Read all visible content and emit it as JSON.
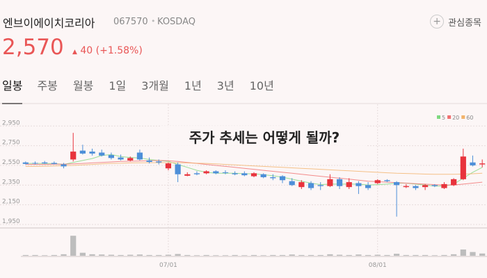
{
  "header": {
    "name": "엔브이에이치코리아",
    "code": "067570",
    "market": "KOSDAQ",
    "favorite": "관심종목",
    "price": "2,570",
    "change": "40",
    "change_pct": "(+1.58%)"
  },
  "tabs": [
    "일봉",
    "주봉",
    "월봉",
    "1일",
    "3개월",
    "1년",
    "3년",
    "10년"
  ],
  "caption": "주가 추세는 어떻게 될까?",
  "chart_data": {
    "type": "candlestick",
    "categories": [
      null,
      null,
      null,
      null,
      null,
      null,
      null,
      null,
      null,
      null,
      null,
      null,
      null,
      null,
      null,
      "07/01",
      null,
      null,
      null,
      null,
      null,
      null,
      null,
      null,
      null,
      null,
      null,
      null,
      null,
      null,
      null,
      null,
      null,
      null,
      null,
      null,
      null,
      "08/01",
      null,
      null,
      null,
      null,
      null,
      null,
      null,
      null,
      null,
      null,
      null
    ],
    "open": [
      2580,
      2575,
      2580,
      2575,
      2560,
      2610,
      2700,
      2690,
      2680,
      2655,
      2630,
      2600,
      2680,
      2600,
      2590,
      2520,
      2560,
      2445,
      2470,
      2470,
      2490,
      2480,
      2470,
      2470,
      2440,
      2460,
      2430,
      2440,
      2390,
      2330,
      2370,
      2350,
      2340,
      2410,
      2330,
      2370,
      2350,
      2370,
      2400,
      2380,
      2330,
      2340,
      2330,
      2350,
      2320,
      2350,
      2410,
      2580,
      2560
    ],
    "high": [
      2590,
      2590,
      2595,
      2590,
      2575,
      2880,
      2760,
      2720,
      2710,
      2680,
      2660,
      2640,
      2710,
      2630,
      2610,
      2580,
      2580,
      2480,
      2490,
      2500,
      2500,
      2500,
      2490,
      2490,
      2480,
      2470,
      2460,
      2450,
      2420,
      2400,
      2390,
      2380,
      2460,
      2430,
      2420,
      2390,
      2380,
      2410,
      2410,
      2390,
      2360,
      2350,
      2360,
      2360,
      2380,
      2420,
      2720,
      2650,
      2610
    ],
    "low": [
      2560,
      2560,
      2565,
      2560,
      2520,
      2590,
      2660,
      2650,
      2640,
      2610,
      2600,
      2590,
      2600,
      2570,
      2560,
      2500,
      2380,
      2440,
      2450,
      2460,
      2460,
      2460,
      2450,
      2440,
      2430,
      2420,
      2400,
      2370,
      2340,
      2310,
      2300,
      2300,
      2330,
      2310,
      2310,
      2260,
      2300,
      2360,
      2380,
      2030,
      2320,
      2300,
      2300,
      2330,
      2310,
      2340,
      2400,
      2540,
      2530
    ],
    "close": [
      2565,
      2570,
      2570,
      2565,
      2540,
      2690,
      2670,
      2670,
      2650,
      2625,
      2610,
      2625,
      2610,
      2585,
      2580,
      2570,
      2460,
      2460,
      2460,
      2490,
      2470,
      2475,
      2460,
      2450,
      2470,
      2430,
      2420,
      2400,
      2350,
      2380,
      2320,
      2340,
      2410,
      2340,
      2380,
      2340,
      2320,
      2400,
      2390,
      2350,
      2340,
      2320,
      2350,
      2340,
      2360,
      2410,
      2640,
      2550,
      2570
    ],
    "volume": [
      3,
      3,
      2,
      3,
      6,
      80,
      12,
      6,
      5,
      4,
      3,
      4,
      5,
      3,
      3,
      4,
      7,
      3,
      2,
      3,
      2,
      2,
      3,
      2,
      3,
      2,
      3,
      3,
      5,
      3,
      3,
      3,
      6,
      4,
      3,
      5,
      3,
      4,
      3,
      8,
      3,
      3,
      3,
      2,
      3,
      6,
      25,
      15,
      9
    ],
    "volume_lim": [
      0,
      100
    ],
    "up_color": "#e8333c",
    "down_color": "#4d8fd8",
    "volume_color": "#bdbdbd",
    "series": [
      {
        "name": "5",
        "color": "#7fd87f",
        "values": [
          2570,
          2570,
          2570,
          2568,
          2560,
          2580,
          2600,
          2620,
          2650,
          2660,
          2640,
          2630,
          2625,
          2610,
          2600,
          2590,
          2560,
          2530,
          2500,
          2480,
          2470,
          2470,
          2470,
          2465,
          2465,
          2455,
          2445,
          2430,
          2410,
          2390,
          2370,
          2355,
          2360,
          2360,
          2360,
          2360,
          2350,
          2355,
          2360,
          2370,
          2370,
          2360,
          2350,
          2340,
          2340,
          2360,
          2420,
          2480,
          2530
        ]
      },
      {
        "name": "20",
        "color": "#f07070",
        "values": [
          2560,
          2560,
          2560,
          2562,
          2562,
          2565,
          2570,
          2575,
          2580,
          2585,
          2590,
          2592,
          2595,
          2598,
          2600,
          2598,
          2590,
          2580,
          2570,
          2560,
          2550,
          2540,
          2530,
          2520,
          2510,
          2500,
          2490,
          2480,
          2470,
          2460,
          2450,
          2440,
          2430,
          2420,
          2410,
          2400,
          2390,
          2385,
          2380,
          2375,
          2370,
          2365,
          2360,
          2355,
          2350,
          2350,
          2360,
          2370,
          2380
        ]
      },
      {
        "name": "60",
        "color": "#f2b36b",
        "values": [
          2540,
          2540,
          2542,
          2545,
          2548,
          2550,
          2555,
          2560,
          2565,
          2570,
          2572,
          2575,
          2576,
          2577,
          2578,
          2578,
          2577,
          2575,
          2572,
          2570,
          2565,
          2560,
          2555,
          2550,
          2545,
          2540,
          2535,
          2530,
          2525,
          2520,
          2515,
          2510,
          2505,
          2500,
          2495,
          2490,
          2485,
          2480,
          2475,
          2470,
          2468,
          2465,
          2462,
          2460,
          2460,
          2460,
          2462,
          2465,
          2470
        ]
      }
    ],
    "ylim": [
      1915,
      3100
    ],
    "yticks": [
      {
        "value": 1950,
        "label": "1,950"
      },
      {
        "value": 2150,
        "label": "2,150"
      },
      {
        "value": 2350,
        "label": "2,350"
      },
      {
        "value": 2550,
        "label": "2,550"
      },
      {
        "value": 2750,
        "label": "2,750"
      },
      {
        "value": 2950,
        "label": "2,950"
      }
    ],
    "grid": true
  }
}
